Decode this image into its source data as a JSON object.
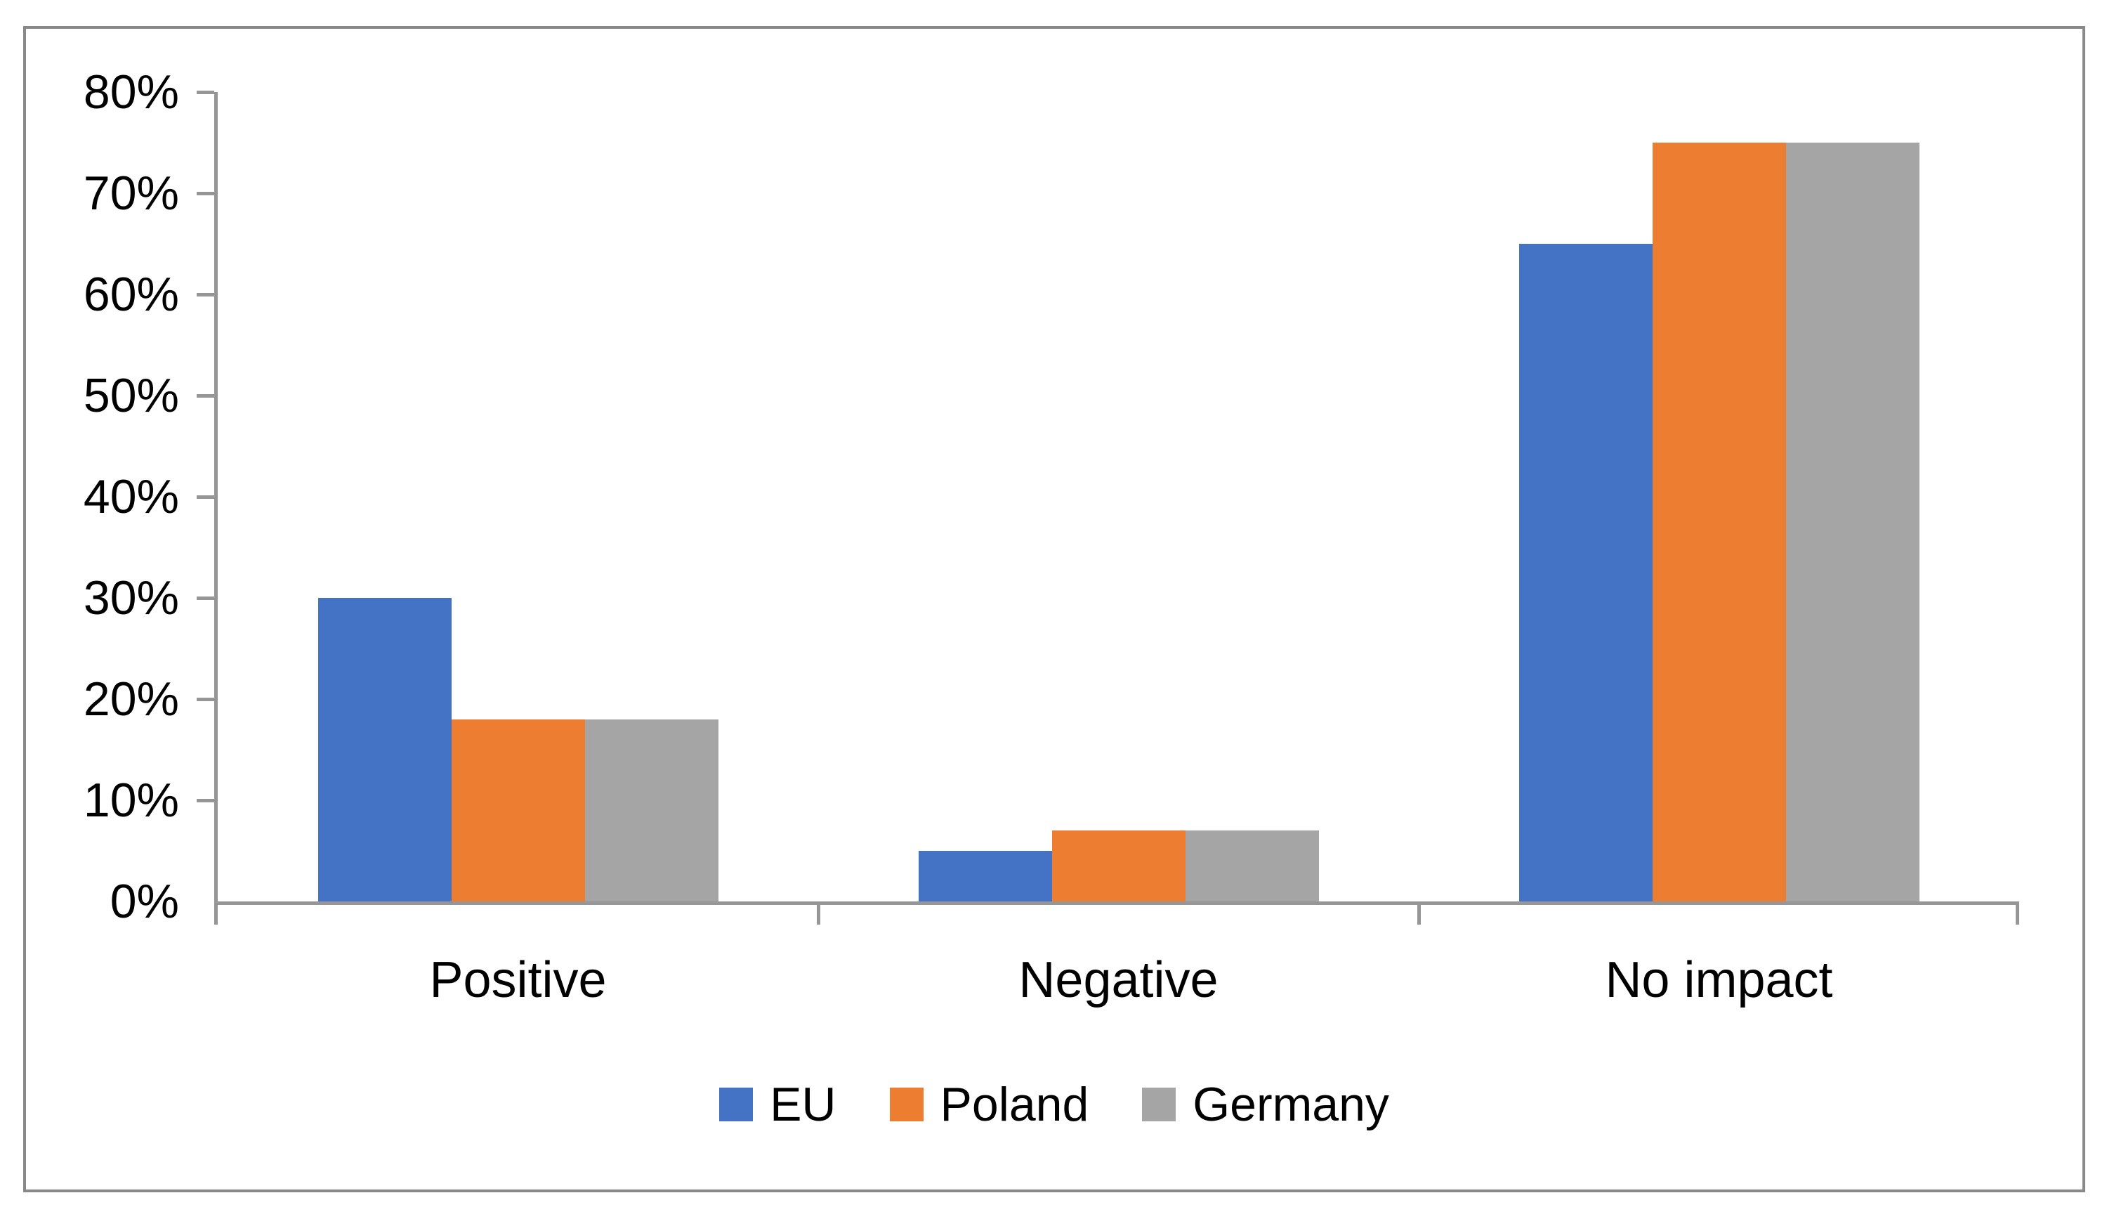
{
  "chart_data": {
    "type": "bar",
    "title": "",
    "categories": [
      "Positive",
      "Negative",
      "No impact"
    ],
    "series": [
      {
        "name": "EU",
        "color": "#4472C4",
        "values": [
          30,
          5,
          65
        ]
      },
      {
        "name": "Poland",
        "color": "#ED7D31",
        "values": [
          18,
          7,
          75
        ]
      },
      {
        "name": "Germany",
        "color": "#A5A5A5",
        "values": [
          18,
          7,
          75
        ]
      }
    ],
    "y_axis": {
      "min": 0,
      "max": 80,
      "step": 10,
      "tick_labels": [
        "0%",
        "10%",
        "20%",
        "30%",
        "40%",
        "50%",
        "60%",
        "70%",
        "80%"
      ],
      "format": "percent"
    },
    "x_axis": {
      "tick_marks": "between-categories"
    },
    "legend": {
      "position": "bottom",
      "entries": [
        "EU",
        "Poland",
        "Germany"
      ]
    },
    "grid": false
  },
  "colors": {
    "background": "#ffffff",
    "frame_border": "#898989",
    "axis": "#969696",
    "text": "#000000"
  }
}
